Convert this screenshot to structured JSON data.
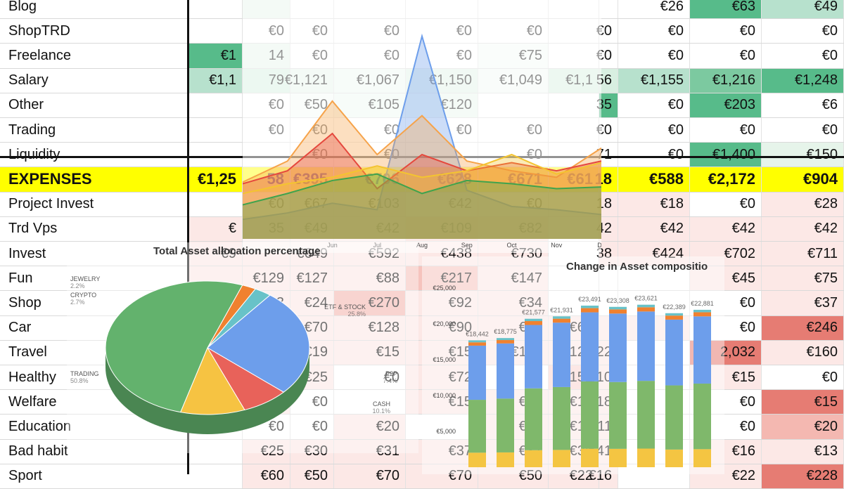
{
  "sheet": {
    "rows": [
      {
        "label": "Blog",
        "values": [
          "",
          "",
          "",
          "",
          "",
          "",
          "",
          "",
          "€26",
          "€63",
          "€49"
        ],
        "colors": [
          "#fff",
          "#e6f4ea",
          "#fff",
          "#fff",
          "#fff",
          "#fff",
          "#fff",
          "#fff",
          "#fff",
          "#57bb8a",
          "#b7e1cd"
        ]
      },
      {
        "label": "ShopTRD",
        "values": [
          "",
          "€0",
          "€0",
          "€0",
          "€0",
          "€0",
          "",
          "€0",
          "€0",
          "€0",
          "€0"
        ],
        "colors": [
          "#fff",
          "#fff",
          "#fff",
          "#fff",
          "#fff",
          "#fff",
          "#fff",
          "#fff",
          "#fff",
          "#fff",
          "#fff"
        ]
      },
      {
        "label": "Freelance",
        "values": [
          "€1",
          "14",
          "€0",
          "€0",
          "€0",
          "€75",
          "",
          "€0",
          "€0",
          "€0",
          "€0"
        ],
        "colors": [
          "#57bb8a",
          "#e6f4ea",
          "#fff",
          "#fff",
          "#fff",
          "#f4fbf6",
          "#fff",
          "#fff",
          "#fff",
          "#fff",
          "#fff"
        ]
      },
      {
        "label": "Salary",
        "values": [
          "€1,1",
          "79",
          "€1,121",
          "€1,067",
          "€1,150",
          "€1,049",
          "€1,1",
          "56",
          "€1,155",
          "€1,216",
          "€1,248"
        ],
        "colors": [
          "#b7e1cd",
          "#d6efe0",
          "#e6f4ea",
          "#eef8f1",
          "#e0f2e7",
          "#f1f9f4",
          "#d8efe1",
          "#d8efe1",
          "#b7e1cd",
          "#7cc9a0",
          "#57bb8a"
        ]
      },
      {
        "label": "Other",
        "values": [
          "",
          "€0",
          "€50",
          "€105",
          "€120",
          "",
          "",
          "35",
          "€0",
          "€203",
          "€6"
        ],
        "colors": [
          "#fff",
          "#fff",
          "#f4fbf6",
          "#eef8f1",
          "#e9f6ee",
          "#fff",
          "#fff",
          "#57bb8a",
          "#fff",
          "#57bb8a",
          "#fff"
        ]
      },
      {
        "label": "Trading",
        "values": [
          "",
          "€0",
          "€0",
          "€0",
          "€0",
          "€0",
          "",
          "€0",
          "€0",
          "€0",
          "€0"
        ],
        "colors": [
          "#fff",
          "#fff",
          "#fff",
          "#fff",
          "#fff",
          "#fff",
          "#fff",
          "#fff",
          "#fff",
          "#fff",
          "#fff"
        ]
      },
      {
        "label": "Liquidity",
        "values": [
          "",
          "",
          "€0",
          "€0",
          "",
          "€0",
          "",
          "71",
          "€0",
          "€1,400",
          "€150"
        ],
        "colors": [
          "#fff",
          "#fff",
          "#fff",
          "#fff",
          "#fff",
          "#fff",
          "#fff",
          "#fff",
          "#fff",
          "#57bb8a",
          "#e6f4ea"
        ]
      },
      {
        "label": "EXPENSES",
        "values": [
          "€1,25",
          "58",
          "€395",
          "€706",
          "€628",
          "€671",
          "€61",
          "18",
          "€588",
          "€2,172",
          "€904"
        ],
        "colors": [
          "#ffff00",
          "#ffff00",
          "#ffff00",
          "#ffff00",
          "#ffff00",
          "#ffff00",
          "#ffff00",
          "#ffff00",
          "#ffff00",
          "#ffff00",
          "#ffff00"
        ]
      },
      {
        "label": "Project  Invest",
        "values": [
          "",
          "€0",
          "€67",
          "€103",
          "€42",
          "€0",
          "",
          "18",
          "€18",
          "€0",
          "€28"
        ],
        "colors": [
          "#fff",
          "#fff",
          "#fce8e6",
          "#fce8e6",
          "#fff",
          "#fff",
          "#fff",
          "#fce8e6",
          "#fce8e6",
          "#fff",
          "#fce8e6"
        ]
      },
      {
        "label": "Trd Vps",
        "values": [
          "€",
          "35",
          "€49",
          "€42",
          "€109",
          "€82",
          "",
          "42",
          "€42",
          "€42",
          "€42"
        ],
        "colors": [
          "#fce8e6",
          "#fce8e6",
          "#fce8e6",
          "#fce8e6",
          "#f9d3cf",
          "#fbe0dc",
          "#fff",
          "#fce8e6",
          "#fce8e6",
          "#fce8e6",
          "#fce8e6"
        ]
      },
      {
        "label": "Invest",
        "values": [
          "€9",
          "",
          "€649",
          "€592",
          "€438",
          "€730",
          "",
          "38",
          "€424",
          "€702",
          "€711"
        ],
        "colors": [
          "#fce8e6",
          "#fce8e6",
          "#fce8e6",
          "#fce8e6",
          "#fce8e6",
          "#fce8e6",
          "#fff",
          "#fce8e6",
          "#fce8e6",
          "#fce8e6",
          "#fce8e6"
        ]
      },
      {
        "label": "Fun",
        "values": [
          "",
          "€129",
          "€127",
          "€88",
          "€217",
          "€147",
          "",
          "",
          "",
          "€45",
          "€75"
        ],
        "colors": [
          "#fce8e6",
          "#fce8e6",
          "#fce8e6",
          "#fce8e6",
          "#f6c3bd",
          "#fce8e6",
          "#fff",
          "#fff",
          "#fff",
          "#fce8e6",
          "#fce8e6"
        ]
      },
      {
        "label": "Shop",
        "values": [
          "",
          "€23",
          "€24",
          "€270",
          "€92",
          "€34",
          "",
          "",
          "",
          "€0",
          "€37"
        ],
        "colors": [
          "#fff",
          "#fce8e6",
          "#fce8e6",
          "#f4b8b1",
          "#fce8e6",
          "#fce8e6",
          "#fff",
          "#fff",
          "#fff",
          "#fff",
          "#fce8e6"
        ]
      },
      {
        "label": "Car",
        "values": [
          "",
          "€313",
          "€70",
          "€128",
          "€90",
          "€90",
          "€60",
          "",
          "",
          "€0",
          "€246"
        ],
        "colors": [
          "#fff",
          "#f4b8b1",
          "#fce8e6",
          "#fce8e6",
          "#fce8e6",
          "#fce8e6",
          "#fce8e6",
          "#fce8e6",
          "#fce8e6",
          "#fff",
          "#e67c73"
        ]
      },
      {
        "label": "Travel",
        "values": [
          "",
          "€669",
          "€19",
          "€15",
          "€15",
          "€100",
          "€122",
          "€22",
          "",
          "2,032",
          "€160"
        ],
        "colors": [
          "#fff",
          "#e67c73",
          "#fce8e6",
          "#fce8e6",
          "#fce8e6",
          "#fce8e6",
          "#fce8e6",
          "#fce8e6",
          "#fff",
          "#e67c73",
          "#fce8e6"
        ]
      },
      {
        "label": "Healthy",
        "values": [
          "",
          "€0",
          "€25",
          "€0",
          "€72",
          "€0",
          "€152",
          "€10",
          "",
          "€15",
          "€0"
        ],
        "colors": [
          "#fff",
          "#fff",
          "#fce8e6",
          "#fff",
          "#fce8e6",
          "#fff",
          "#f9d3cf",
          "#fce8e6",
          "#fff",
          "#fce8e6",
          "#fff"
        ]
      },
      {
        "label": "Welfare",
        "values": [
          "",
          "€15",
          "€0",
          "",
          "€15",
          "€18",
          "€15",
          "€18",
          "",
          "€0",
          "€15"
        ],
        "colors": [
          "#fff",
          "#fce8e6",
          "#fff",
          "#fff",
          "#fce8e6",
          "#fce8e6",
          "#fce8e6",
          "#fce8e6",
          "#fff",
          "#fff",
          "#e67c73"
        ]
      },
      {
        "label": "Education",
        "values": [
          "",
          "€0",
          "€0",
          "€20",
          "",
          "€20",
          "€13",
          "€11",
          "",
          "€0",
          "€20"
        ],
        "colors": [
          "#fff",
          "#fff",
          "#fff",
          "#fce8e6",
          "#fff",
          "#fce8e6",
          "#fce8e6",
          "#fce8e6",
          "#fff",
          "#fff",
          "#f4b8b1"
        ]
      },
      {
        "label": "Bad habit",
        "values": [
          "",
          "€25",
          "€30",
          "€31",
          "€37",
          "€31",
          "€38",
          "€41",
          "",
          "€16",
          "€13"
        ],
        "colors": [
          "#fff",
          "#fce8e6",
          "#fce8e6",
          "#fce8e6",
          "#fce8e6",
          "#fce8e6",
          "#fce8e6",
          "#fce8e6",
          "#fff",
          "#fce8e6",
          "#fce8e6"
        ]
      },
      {
        "label": "Sport",
        "values": [
          "",
          "€60",
          "€50",
          "€70",
          "€70",
          "€50",
          "€22",
          "€16",
          "",
          "€22",
          "€228"
        ],
        "colors": [
          "#fff",
          "#fce8e6",
          "#fce8e6",
          "#fce8e6",
          "#fce8e6",
          "#fce8e6",
          "#fce8e6",
          "#fce8e6",
          "#fff",
          "#fce8e6",
          "#e67c73"
        ]
      }
    ]
  },
  "chart_data": [
    {
      "type": "area",
      "title": "",
      "x": [
        "",
        "",
        "Jun",
        "Jul",
        "Aug",
        "Sep",
        "Oct",
        "Nov",
        "De"
      ],
      "series": [
        {
          "color": "#6d9eeb",
          "values": [
            120,
            160,
            220,
            180,
            1250,
            300,
            200,
            180,
            150
          ]
        },
        {
          "color": "#f6a34a",
          "values": [
            350,
            480,
            850,
            520,
            760,
            480,
            420,
            380,
            560
          ]
        },
        {
          "color": "#e5483d",
          "values": [
            340,
            420,
            650,
            310,
            520,
            420,
            470,
            420,
            480
          ]
        },
        {
          "color": "#f4c430",
          "values": [
            280,
            340,
            380,
            450,
            380,
            420,
            520,
            400,
            470
          ]
        },
        {
          "color": "#3fa34d",
          "values": [
            210,
            280,
            360,
            400,
            280,
            360,
            340,
            310,
            320
          ]
        }
      ]
    },
    {
      "type": "pie",
      "title": "Total Asset allocation percentage",
      "slices": [
        {
          "label": "TRADING",
          "value": 50.8,
          "pct": "50.8%",
          "color": "#63b26d"
        },
        {
          "label": "ETF & STOCK",
          "value": 25.8,
          "pct": "25.8%",
          "color": "#6d9eeb"
        },
        {
          "label": "P2P",
          "value": 7.4,
          "pct": "7.4%",
          "color": "#e8625a"
        },
        {
          "label": "CASH",
          "value": 10.1,
          "pct": "10.1%",
          "color": "#f6c342"
        },
        {
          "label": "JEWELRY",
          "value": 2.2,
          "pct": "2.2%",
          "color": "#f0812f"
        },
        {
          "label": "CRYPTO",
          "value": 2.7,
          "pct": "2.7%",
          "color": "#68c2c8"
        }
      ]
    },
    {
      "type": "bar",
      "title": "Change in Asset compositio",
      "ylabels": [
        "€5,000",
        "€10,000",
        "€15,000",
        "€20,000",
        "€25,000"
      ],
      "totals": [
        "€18,442",
        "€18,775",
        "€21,577",
        "€21,931",
        "€23,491",
        "€23,308",
        "€23,621",
        "€22,389",
        "€22,881"
      ],
      "total_values": [
        18442,
        18775,
        21577,
        21931,
        23491,
        23308,
        23621,
        22389,
        22881
      ],
      "stack_colors": [
        "#f4c542",
        "#7fb86b",
        "#6d9eeb",
        "#f0812f",
        "#68c2c8"
      ]
    }
  ]
}
